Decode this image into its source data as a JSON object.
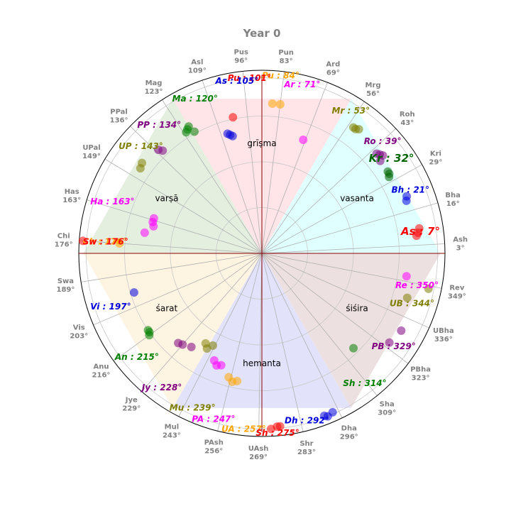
{
  "chart_data": {
    "type": "scatter",
    "projection": "polar",
    "title": "Year 0",
    "theta_direction": "counterclockwise",
    "theta_zero": "east",
    "grid": true,
    "ticks": [
      {
        "name": "Ash",
        "deg": 3
      },
      {
        "name": "Bha",
        "deg": 16
      },
      {
        "name": "Kri",
        "deg": 29
      },
      {
        "name": "Roh",
        "deg": 43
      },
      {
        "name": "Mrg",
        "deg": 56
      },
      {
        "name": "Ard",
        "deg": 69
      },
      {
        "name": "Pun",
        "deg": 83
      },
      {
        "name": "Pus",
        "deg": 96
      },
      {
        "name": "Asl",
        "deg": 109
      },
      {
        "name": "Mag",
        "deg": 123
      },
      {
        "name": "PPal",
        "deg": 136
      },
      {
        "name": "UPal",
        "deg": 149
      },
      {
        "name": "Has",
        "deg": 163
      },
      {
        "name": "Chi",
        "deg": 176
      },
      {
        "name": "Swa",
        "deg": 189
      },
      {
        "name": "Vis",
        "deg": 203
      },
      {
        "name": "Anu",
        "deg": 216
      },
      {
        "name": "Jye",
        "deg": 229
      },
      {
        "name": "Mul",
        "deg": 243
      },
      {
        "name": "PAsh",
        "deg": 256
      },
      {
        "name": "UAsh",
        "deg": 269
      },
      {
        "name": "Shr",
        "deg": 283
      },
      {
        "name": "Dha",
        "deg": 296
      },
      {
        "name": "Sha",
        "deg": 309
      },
      {
        "name": "PBha",
        "deg": 323
      },
      {
        "name": "UBha",
        "deg": 336
      },
      {
        "name": "Rev",
        "deg": 349
      }
    ],
    "seasons": [
      {
        "name": "vasanta",
        "start": 0,
        "end": 60,
        "color": "#e0ffff"
      },
      {
        "name": "grīṣma",
        "start": 60,
        "end": 120,
        "color": "#ffe4e8"
      },
      {
        "name": "varṣā",
        "start": 120,
        "end": 180,
        "color": "#e4efe0"
      },
      {
        "name": "śarat",
        "start": 180,
        "end": 240,
        "color": "#fef4e2"
      },
      {
        "name": "hemanta",
        "start": 240,
        "end": 300,
        "color": "#e2e2fb"
      },
      {
        "name": "śiśira",
        "start": 300,
        "end": 360,
        "color": "#ede0e0"
      }
    ],
    "series": [
      {
        "name": "As",
        "deg": 7,
        "color": "#ff0000",
        "label": "As : 7°",
        "large": true,
        "points": [
          [
            6.5,
            0.85
          ],
          [
            7.5,
            0.86
          ],
          [
            9,
            0.87
          ]
        ]
      },
      {
        "name": "Bh",
        "deg": 21,
        "color": "#0000dd",
        "label": "Bh : 21°",
        "points": [
          [
            20,
            0.84
          ],
          [
            21.5,
            0.85
          ]
        ]
      },
      {
        "name": "Kr",
        "deg": 32,
        "color": "#006400",
        "label": "Kr : 32°",
        "large": true,
        "points": [
          [
            31,
            0.81
          ],
          [
            32,
            0.82
          ],
          [
            33,
            0.82
          ]
        ]
      },
      {
        "name": "Ro",
        "deg": 39,
        "color": "#800080",
        "label": "Ro : 39°",
        "points": [
          [
            38,
            0.82
          ],
          [
            39,
            0.85
          ],
          [
            40,
            0.84
          ],
          [
            41,
            0.83
          ]
        ]
      },
      {
        "name": "Mr",
        "deg": 53,
        "color": "#808000",
        "label": "Mr : 53°",
        "points": [
          [
            52,
            0.86
          ],
          [
            53,
            0.85
          ],
          [
            54,
            0.85
          ]
        ]
      },
      {
        "name": "Ar",
        "deg": 71,
        "color": "#ff00ff",
        "label": "Ar : 71°",
        "points": [
          [
            70,
            0.66
          ]
        ]
      },
      {
        "name": "Pu",
        "deg": 84,
        "color": "#ffa500",
        "label": "Pu : 84°",
        "points": [
          [
            83,
            0.82
          ],
          [
            86,
            0.82
          ]
        ]
      },
      {
        "name": "Pu",
        "deg": 101,
        "color": "#ff0000",
        "label": "Pu : 101°",
        "points": [
          [
            102,
            0.76
          ]
        ]
      },
      {
        "name": "As",
        "deg": 105,
        "color": "#0000dd",
        "label": "As : 105°",
        "points": [
          [
            104,
            0.66
          ],
          [
            105,
            0.67
          ],
          [
            106,
            0.68
          ]
        ]
      },
      {
        "name": "Ma",
        "deg": 120,
        "color": "#008000",
        "label": "Ma : 120°",
        "points": [
          [
            119,
            0.76
          ],
          [
            120,
            0.8
          ],
          [
            121,
            0.79
          ],
          [
            122,
            0.78
          ]
        ]
      },
      {
        "name": "PP",
        "deg": 134,
        "color": "#800080",
        "label": "PP : 134°",
        "points": [
          [
            134,
            0.78
          ],
          [
            135,
            0.8
          ]
        ]
      },
      {
        "name": "UP",
        "deg": 143,
        "color": "#808000",
        "label": "UP : 143°",
        "points": [
          [
            143,
            0.82
          ],
          [
            145,
            0.81
          ]
        ]
      },
      {
        "name": "Ha",
        "deg": 163,
        "color": "#ff00ff",
        "label": "Ha : 163°",
        "points": [
          [
            162,
            0.62
          ],
          [
            164,
            0.62
          ],
          [
            166,
            0.61
          ],
          [
            170,
            0.65
          ]
        ]
      },
      {
        "name": "Ch",
        "deg": 176,
        "color": "#ffa500",
        "label": "Ch : 176°",
        "points": [
          [
            176,
            0.78
          ]
        ]
      },
      {
        "name": "Sw",
        "deg": 176,
        "color": "#ff0000",
        "label": "Sw : 176°",
        "points": [
          [
            176,
            0.98
          ]
        ]
      },
      {
        "name": "Vi",
        "deg": 197,
        "color": "#0000dd",
        "label": "Vi : 197°",
        "points": [
          [
            197,
            0.73
          ]
        ]
      },
      {
        "name": "An",
        "deg": 215,
        "color": "#008000",
        "label": "An : 215°",
        "points": [
          [
            214,
            0.75
          ],
          [
            215,
            0.75
          ],
          [
            216,
            0.76
          ]
        ]
      },
      {
        "name": "Jy",
        "deg": 228,
        "color": "#800080",
        "label": "Jy : 228°",
        "points": [
          [
            227,
            0.67
          ],
          [
            229,
            0.66
          ],
          [
            233,
            0.64
          ]
        ]
      },
      {
        "name": "Mu",
        "deg": 239,
        "color": "#808000",
        "label": "Mu : 239°",
        "points": [
          [
            238,
            0.58
          ],
          [
            240,
            0.6
          ],
          [
            242,
            0.57
          ]
        ]
      },
      {
        "name": "PA",
        "deg": 247,
        "color": "#ff00ff",
        "label": "PA : 247°",
        "points": [
          [
            246,
            0.64
          ],
          [
            248,
            0.66
          ],
          [
            250,
            0.65
          ]
        ]
      },
      {
        "name": "UA",
        "deg": 257,
        "color": "#ffa500",
        "label": "UA : 257°",
        "points": [
          [
            255,
            0.7
          ],
          [
            257,
            0.72
          ],
          [
            259,
            0.71
          ]
        ]
      },
      {
        "name": "Sh",
        "deg": 275,
        "color": "#ff0000",
        "label": "Sh : 275°",
        "points": [
          [
            273,
            0.96
          ],
          [
            275,
            0.95
          ],
          [
            276,
            0.95
          ]
        ]
      },
      {
        "name": "Dh",
        "deg": 292,
        "color": "#0000dd",
        "label": "Dh : 292°",
        "points": [
          [
            291,
            0.95
          ],
          [
            292,
            0.96
          ],
          [
            294,
            0.95
          ]
        ]
      },
      {
        "name": "Sh",
        "deg": 314,
        "color": "#008000",
        "label": "Sh : 314°",
        "points": [
          [
            314,
            0.72
          ]
        ]
      },
      {
        "name": "PB",
        "deg": 329,
        "color": "#800080",
        "label": "PB : 329°",
        "points": [
          [
            325,
            0.85
          ],
          [
            331,
            0.87
          ]
        ]
      },
      {
        "name": "UB",
        "deg": 344,
        "color": "#808000",
        "label": "UB : 344°",
        "points": [
          [
            343,
            0.83
          ],
          [
            348,
            0.93
          ]
        ]
      },
      {
        "name": "Re",
        "deg": 350,
        "color": "#ff00ff",
        "label": "Re : 350°",
        "points": [
          [
            351,
            0.8
          ]
        ]
      }
    ]
  }
}
